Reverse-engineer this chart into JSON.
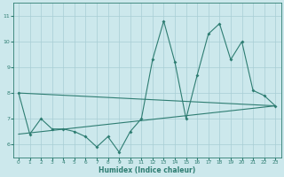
{
  "xlabel": "Humidex (Indice chaleur)",
  "background_color": "#cce8ec",
  "grid_color": "#a8cdd4",
  "line_color": "#2e7d72",
  "xlim": [
    -0.5,
    23.5
  ],
  "ylim": [
    5.5,
    11.5
  ],
  "yticks": [
    6,
    7,
    8,
    9,
    10,
    11
  ],
  "xticks": [
    0,
    1,
    2,
    3,
    4,
    5,
    6,
    7,
    8,
    9,
    10,
    11,
    12,
    13,
    14,
    15,
    16,
    17,
    18,
    19,
    20,
    21,
    22,
    23
  ],
  "series": [
    [
      0,
      8.0
    ],
    [
      1,
      6.4
    ],
    [
      2,
      7.0
    ],
    [
      3,
      6.6
    ],
    [
      4,
      6.6
    ],
    [
      5,
      6.5
    ],
    [
      6,
      6.3
    ],
    [
      7,
      5.9
    ],
    [
      8,
      6.3
    ],
    [
      9,
      5.7
    ],
    [
      10,
      6.5
    ],
    [
      11,
      7.0
    ],
    [
      12,
      9.3
    ],
    [
      13,
      10.8
    ],
    [
      14,
      9.2
    ],
    [
      15,
      7.0
    ],
    [
      16,
      8.7
    ],
    [
      17,
      10.3
    ],
    [
      18,
      10.7
    ],
    [
      19,
      9.3
    ],
    [
      20,
      10.0
    ],
    [
      21,
      8.1
    ],
    [
      22,
      7.9
    ],
    [
      23,
      7.5
    ]
  ],
  "line2_pts": [
    [
      0,
      6.4
    ],
    [
      23,
      7.5
    ]
  ],
  "line3_pts": [
    [
      0,
      8.0
    ],
    [
      23,
      7.5
    ]
  ]
}
